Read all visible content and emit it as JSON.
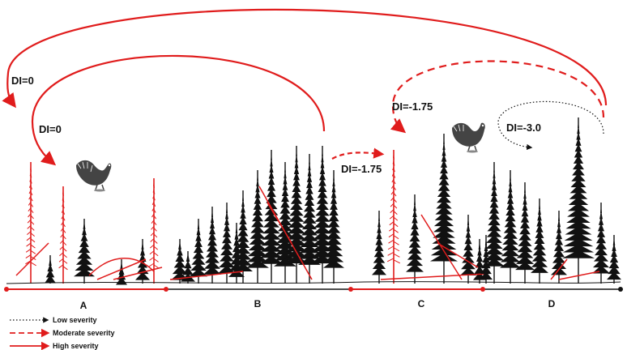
{
  "colors": {
    "high": "#e01c1c",
    "moderate": "#e01c1c",
    "low": "#111111",
    "tree": "#111111",
    "disturbed_tree": "#e01c1c"
  },
  "stages": [
    "A",
    "B",
    "C",
    "D"
  ],
  "transitions": {
    "d_to_a": "DI=0",
    "b_to_a": "DI=0",
    "b_to_c": "DI=-1.75",
    "d_to_c": "DI=-1.75",
    "d_to_d": "DI=-3.0"
  },
  "legend": {
    "low": "Low severity",
    "moderate": "Moderate severity",
    "high": "High severity"
  },
  "icons": [
    "grouse-bird-icon",
    "grouse-bird-icon"
  ]
}
